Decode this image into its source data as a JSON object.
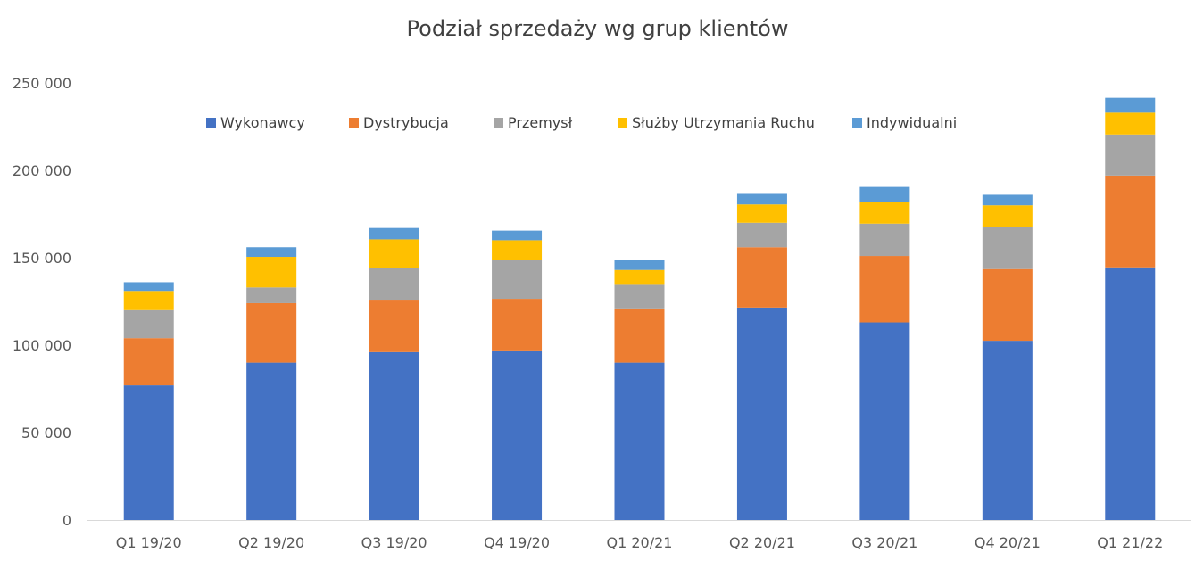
{
  "chart_data": {
    "type": "bar",
    "stacked": true,
    "title": "Podział sprzedaży wg grup klientów",
    "xlabel": "",
    "ylabel": "",
    "ylim": [
      0,
      250000
    ],
    "y_ticks": [
      0,
      50000,
      100000,
      150000,
      200000,
      250000
    ],
    "y_tick_labels": [
      "0",
      "50 000",
      "100 000",
      "150 000",
      "200 000",
      "250 000"
    ],
    "grid": false,
    "legend_position": "top",
    "categories": [
      "Q1 19/20",
      "Q2 19/20",
      "Q3 19/20",
      "Q4 19/20",
      "Q1 20/21",
      "Q2 20/21",
      "Q3 20/21",
      "Q4 20/21",
      "Q1 21/22"
    ],
    "series": [
      {
        "name": "Wykonawcy",
        "color": "#4472C4",
        "values": [
          77000,
          90000,
          96000,
          97000,
          90000,
          121500,
          113000,
          102500,
          144500
        ]
      },
      {
        "name": "Dystrybucja",
        "color": "#ED7D31",
        "values": [
          27000,
          34000,
          30000,
          29500,
          31000,
          34500,
          38000,
          41000,
          52500
        ]
      },
      {
        "name": "Przemysł",
        "color": "#A5A5A5",
        "values": [
          16000,
          9000,
          18000,
          22000,
          14000,
          14000,
          18500,
          24000,
          23500
        ]
      },
      {
        "name": "Służby Utrzymania Ruchu",
        "color": "#FFC000",
        "values": [
          11000,
          17500,
          16500,
          11500,
          8000,
          10500,
          12500,
          12500,
          12500
        ]
      },
      {
        "name": "Indywidualni",
        "color": "#5B9BD5",
        "values": [
          5000,
          5500,
          6500,
          5500,
          5500,
          6500,
          8500,
          6000,
          8500
        ]
      }
    ]
  },
  "colors": {
    "axis": "#D9D9D9",
    "tick_text": "#595959"
  }
}
